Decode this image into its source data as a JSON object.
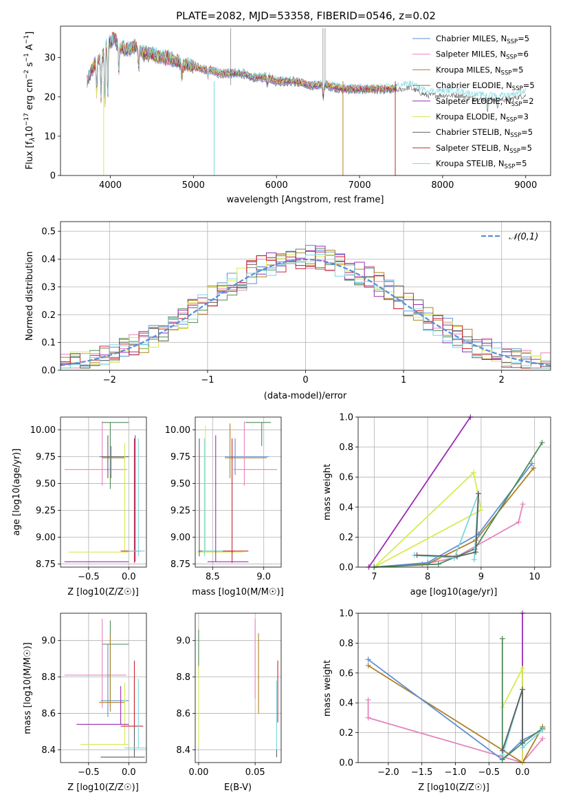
{
  "figure": {
    "title": "PLATE=2082, MJD=53358, FIBERID=0546, z=0.02"
  },
  "series": [
    {
      "name": "Chabrier MILES",
      "nssp": "5",
      "color": "#5b8ed8"
    },
    {
      "name": "Salpeter MILES",
      "nssp": "6",
      "color": "#e584bd"
    },
    {
      "name": "Kroupa MILES",
      "nssp": "5",
      "color": "#b07f22"
    },
    {
      "name": "Chabrier ELODIE",
      "nssp": "5",
      "color": "#4d8a57"
    },
    {
      "name": "Salpeter ELODIE",
      "nssp": "2",
      "color": "#9b2ab6"
    },
    {
      "name": "Kroupa ELODIE",
      "nssp": "3",
      "color": "#d7ea52"
    },
    {
      "name": "Chabrier STELIB",
      "nssp": "5",
      "color": "#5c5c5c"
    },
    {
      "name": "Salpeter STELIB",
      "nssp": "5",
      "color": "#c8242c"
    },
    {
      "name": "Kroupa STELIB",
      "nssp": "5",
      "color": "#79d6e0"
    }
  ],
  "chart_data": [
    {
      "id": "spectrum",
      "type": "line",
      "xlabel": "wavelength [Angstrom, rest frame]",
      "ylabel_prefix": "Flux [f",
      "ylabel_lambda": "λ",
      "ylabel_mid": "10",
      "ylabel_exp1": "−17",
      "ylabel_unit": " erg cm",
      "ylabel_exp2": "−2",
      "ylabel_s": " s",
      "ylabel_exp3": "−1",
      "ylabel_end": " A",
      "ylabel_exp4": "−1",
      "ylabel_close": "]",
      "xlim": [
        3400,
        9300
      ],
      "ylim": [
        0,
        38
      ],
      "xticks": [
        4000,
        5000,
        6000,
        7000,
        8000,
        9000
      ],
      "yticks": [
        0,
        10,
        20,
        30
      ],
      "continuum": [
        [
          3720,
          24
        ],
        [
          3780,
          27
        ],
        [
          3830,
          29
        ],
        [
          3900,
          30
        ],
        [
          3950,
          33
        ],
        [
          4000,
          34
        ],
        [
          4050,
          35
        ],
        [
          4100,
          33
        ],
        [
          4200,
          32
        ],
        [
          4300,
          33
        ],
        [
          4400,
          31
        ],
        [
          4500,
          31
        ],
        [
          4600,
          30
        ],
        [
          4700,
          30
        ],
        [
          4800,
          29
        ],
        [
          4900,
          28
        ],
        [
          5000,
          28
        ],
        [
          5100,
          27
        ],
        [
          5200,
          27
        ],
        [
          5300,
          26
        ],
        [
          5400,
          26
        ],
        [
          5500,
          26
        ],
        [
          5600,
          26
        ],
        [
          5700,
          25
        ],
        [
          5800,
          25
        ],
        [
          5900,
          25
        ],
        [
          6000,
          24
        ],
        [
          6200,
          24
        ],
        [
          6400,
          23
        ],
        [
          6600,
          23
        ],
        [
          6800,
          22
        ],
        [
          7000,
          22
        ],
        [
          7200,
          22
        ],
        [
          7400,
          22
        ],
        [
          7600,
          23
        ],
        [
          7800,
          21
        ],
        [
          8000,
          21
        ],
        [
          8200,
          21
        ],
        [
          8400,
          20
        ],
        [
          8600,
          20
        ],
        [
          8800,
          20
        ],
        [
          9000,
          21
        ]
      ],
      "drop_wavelengths": [
        5250,
        6800,
        7430,
        3920
      ]
    },
    {
      "id": "residuals",
      "type": "line",
      "xlabel": "(data-model)/error",
      "ylabel": "Normed distribution",
      "legend": "𝒩(0,1)",
      "legend_position": "top-right",
      "xlim": [
        -2.5,
        2.5
      ],
      "ylim": [
        0,
        0.535
      ],
      "xticks": [
        -2,
        -1,
        0,
        1,
        2
      ],
      "yticks": [
        0.0,
        0.1,
        0.2,
        0.3,
        0.4,
        0.5
      ],
      "grid": true
    },
    {
      "id": "age_vs_Z",
      "type": "scatter",
      "xlabel": "Z [log10(Z/Z☉)]",
      "ylabel": "age [log10(age/yr)]",
      "xlim": [
        -0.85,
        0.22
      ],
      "ylim": [
        8.72,
        10.12
      ],
      "xticks": [
        -0.5,
        0.0
      ],
      "yticks": [
        8.75,
        9.0,
        9.25,
        9.5,
        9.75,
        10.0
      ],
      "grid": true
    },
    {
      "id": "age_vs_mass",
      "type": "scatter",
      "xlabel": "mass [log10(M/M☉)]",
      "xlim": [
        8.33,
        9.17
      ],
      "ylim": [
        8.72,
        10.12
      ],
      "xticks": [
        8.5,
        9.0
      ],
      "yticks": [
        8.75,
        9.0,
        9.25,
        9.5,
        9.75,
        10.0
      ],
      "grid": true
    },
    {
      "id": "weight_vs_age",
      "type": "line",
      "xlabel": "age [log10(age/yr)]",
      "ylabel": "mass weight",
      "xlim": [
        6.7,
        10.3
      ],
      "ylim": [
        0,
        1
      ],
      "xticks": [
        7,
        8,
        9,
        10
      ],
      "yticks": [
        0.0,
        0.2,
        0.4,
        0.6,
        0.8,
        1.0
      ],
      "grid": true
    },
    {
      "id": "mass_vs_Z",
      "type": "scatter",
      "xlabel": "Z [log10(Z/Z☉)]",
      "ylabel": "mass [log10(M/M☉)]",
      "xlim": [
        -0.85,
        0.22
      ],
      "ylim": [
        8.33,
        9.15
      ],
      "xticks": [
        -0.5,
        0.0
      ],
      "yticks": [
        8.4,
        8.6,
        8.8,
        9.0
      ],
      "grid": true
    },
    {
      "id": "mass_vs_ebv",
      "type": "scatter",
      "xlabel": "E(B-V)",
      "xlim": [
        -0.003,
        0.073
      ],
      "ylim": [
        8.33,
        9.15
      ],
      "xticks": [
        0.0,
        0.05
      ],
      "yticks": [
        8.4,
        8.6,
        8.8,
        9.0
      ],
      "grid": true
    },
    {
      "id": "weight_vs_Z",
      "type": "line",
      "xlabel": "Z [log10(Z/Z☉)]",
      "ylabel": "mass weight",
      "xlim": [
        -2.45,
        0.42
      ],
      "ylim": [
        0,
        1
      ],
      "xticks": [
        -2.0,
        -1.5,
        -1.0,
        -0.5,
        0.0
      ],
      "yticks": [
        0.0,
        0.2,
        0.4,
        0.6,
        0.8,
        1.0
      ],
      "grid": true
    }
  ]
}
